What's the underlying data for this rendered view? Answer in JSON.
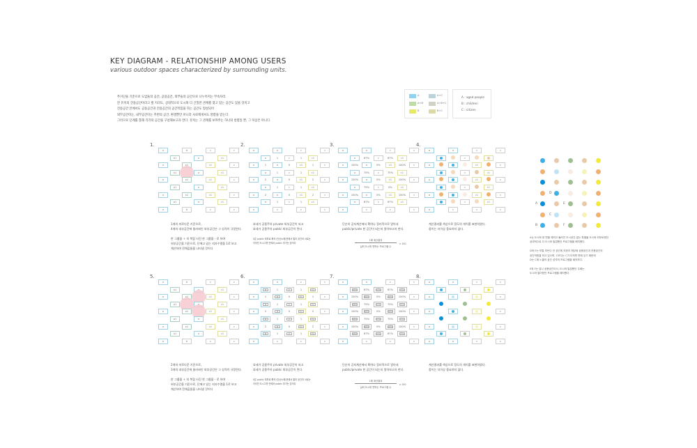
{
  "header": {
    "title": "KEY DIAGRAM - RELATIONSHIP AMONG USERS",
    "subtitle": "various outdoor spaces characterized by surrounding units."
  },
  "intro": "주거단을 기준으로 도입들의 공간, 공용공간, 외부들의 공간으로 나누어지는 부속자리.\n한 유지의 전용공간이라고 할 지라도, 상대적으로 도시와 더 긴밀한 관계를 맺고 있는 공간도 있을 것이고\n전용공간 안에서도 공용공간과 전용공간의 공간적힘을 하는 공간도 형성되어\n외부공간이는, 내부공간이는 주변의 공간, 환경뿐만 아니라 사로에게서도 영향을 받는다.\n그러므로 단계를 통해 각각의 공간을 구성해보고자 한다. 유저는 그 관계를 보여주는 하나의 방향일 뿐, 그 이상은 아니다.",
  "legend": {
    "swatches": [
      {
        "label": "A",
        "color": "#8fd3ee"
      },
      {
        "label": "A+B",
        "color": "#bfdca8"
      },
      {
        "label": "B",
        "color": "#e9e86e"
      },
      {
        "label": "A+C",
        "color": "#bcd3dc"
      },
      {
        "label": "A+B+C",
        "color": "#cfd3c6"
      },
      {
        "label": "B+C",
        "color": "#dcd9a6"
      }
    ],
    "users": [
      "A : aged people",
      "B : children",
      "C : citizen"
    ]
  },
  "colors": {
    "a": "#9fcfe0",
    "a1": "#a9cfc0",
    "b": "#cccccc",
    "c": "#cccccc",
    "c1": "#dede9a",
    "blue": "#3fb0e6",
    "bluestrong": "#0a8fd8",
    "bluelight": "#bfe3f3",
    "orange": "#f0b070",
    "orangelight": "#f6d9bb",
    "tan": "#e8c9a8",
    "green": "#9fbf90",
    "greenlight": "#cddcc4",
    "yellow": "#f1ea3a",
    "yellowlight": "#f7f2b8",
    "pale": "#f7ebe2",
    "pink": "#f6c9cf"
  },
  "panels": [
    {
      "number": "1.",
      "grid": [
        [
          "[a]",
          "",
          "[b]",
          "",
          "[c]",
          "",
          "[c]"
        ],
        [
          "",
          "[a1]",
          "",
          "[a]",
          "",
          "[c1]",
          ""
        ],
        [
          "[a]",
          "",
          "[a1]",
          "",
          "[c1]",
          "",
          "[c]"
        ],
        [
          "",
          "[a1]",
          "{pink}",
          "[a]",
          "",
          "[c1]",
          ""
        ],
        [
          "[a]",
          "",
          "[a1]",
          "",
          "[c1]",
          "",
          "[c]"
        ],
        [
          "",
          "[a1]",
          "",
          "[a]",
          "",
          "[c1]",
          ""
        ],
        [
          "[a]",
          "",
          "[a1]",
          "",
          "[c1]",
          "",
          "[c]"
        ],
        [
          "",
          "[a1]",
          "",
          "[a]",
          "",
          "[c1]",
          ""
        ],
        [
          "[a]",
          "",
          "[b]",
          "",
          "[c]",
          "",
          "[c]"
        ]
      ],
      "text": "1개의 미로다운 기준으로,\n4개의 내부공간에 둘러싸인 외부공간은 그 성격이 규정된다.\n\n한 그룹을 + 의 복잡 사진 한 그룹을 - 로 하여\n외부공간을 기준으로, 단에고 있는 지자수열을 1로 보고\n계산하여 전체값들을 나타낼 것이다"
    },
    {
      "number": "2.",
      "grid": [
        [
          "[a]",
          "",
          "[a]",
          "",
          "[c]",
          "",
          "[c]"
        ],
        [
          "",
          "[a]",
          "1",
          "[c]",
          "1",
          "[c1]",
          ""
        ],
        [
          "[a]",
          "1",
          "[a]",
          "0",
          "[c1]",
          "1",
          "[c]"
        ],
        [
          "",
          "[a]",
          "1",
          "[c]",
          "1",
          "[c1]",
          ""
        ],
        [
          "[a]",
          "2",
          "[a]",
          "0",
          "[c1]",
          "2",
          "[c]"
        ],
        [
          "",
          "[a]",
          "1",
          "[c]",
          "1",
          "[c1]",
          ""
        ],
        [
          "[a]",
          "2",
          "[a]",
          "0",
          "[c1]",
          "2",
          "[c]"
        ],
        [
          "",
          "[a]",
          "1",
          "[c]",
          "1",
          "[c1]",
          ""
        ],
        [
          "[a]",
          "",
          "[c]",
          "",
          "[c]",
          "",
          "[c]"
        ]
      ],
      "text": "호세가 공용주의 private 외부공간이 되고\n호세가 공용주의 public 외부공간이 된다.",
      "note": "0은 public 외부로 해석 (단순노에)전에서 멀리 공간과 서로는\n이어진 도시그를 안에서 public 추가는 장이다"
    },
    {
      "number": "3.",
      "grid": [
        [
          "[a]",
          "",
          "[a]",
          "",
          "[c]",
          "",
          "[c]"
        ],
        [
          "",
          "[a]",
          "67%",
          "[c]",
          "67%",
          "[c1]",
          ""
        ],
        [
          "[a]",
          "100%",
          "[a]",
          "0%",
          "[c1]",
          "100%",
          "[c]"
        ],
        [
          "",
          "[a]",
          "75%",
          "[c]",
          "75%",
          "[c1]",
          ""
        ],
        [
          "[a]",
          "100%",
          "[a]",
          "0%",
          "[c1]",
          "100%",
          "[c]"
        ],
        [
          "",
          "[a]",
          "75%",
          "[c]",
          "0%",
          "[c1]",
          ""
        ],
        [
          "[a]",
          "100%",
          "[a]",
          "0%",
          "[c1]",
          "100%",
          "[c]"
        ],
        [
          "",
          "[a]",
          "67%",
          "[c]",
          "67%",
          "[c1]",
          ""
        ],
        [
          "[a]",
          "",
          "[c]",
          "",
          "[c]",
          "",
          "[c]"
        ]
      ],
      "text": "단순의 공지계산에서 확여나 정리적으로 알아내\npublic/private 한 공간이 되는지 알아보고자 한다.",
      "formula_num": "1에 계산결과",
      "formula_den": "실외 도시와 면하는 프로그램 수",
      "formula_mult": "x 100"
    },
    {
      "number": "4.",
      "grid": [
        [
          "[a]",
          "",
          "[a]",
          "",
          "[c]",
          "",
          "[c]"
        ],
        [
          "",
          "[a:blue]",
          "(orangelight)",
          "[c]",
          "(orangelight)",
          "[c1:tan]",
          ""
        ],
        [
          "[a]",
          "(orange)",
          "[a:blue]",
          "(pale)",
          "[c1]",
          "(orange)",
          "[c]"
        ],
        [
          "",
          "[a:blue]",
          "(orangelight)",
          "[c]",
          "(tan)",
          "[c1]",
          ""
        ],
        [
          "[a]",
          "(orange)",
          "[a:blue]",
          "(pale)",
          "[c1]",
          "(orange)",
          "[c]"
        ],
        [
          "",
          "[a:blue]",
          "(orangelight)",
          "[c]",
          "(tan)",
          "[c1]",
          ""
        ],
        [
          "[a]",
          "(orange)",
          "[a:blue]",
          "(pale)",
          "[c1]",
          "(orange)",
          "[c]"
        ],
        [
          "",
          "[a:blue]",
          "(orangelight)",
          "[c]",
          "(orangelight)",
          "[c1]",
          ""
        ],
        [
          "[a]",
          "",
          "[c]",
          "",
          "[c]",
          "",
          "[c]"
        ]
      ],
      "text": "계산결과를 색상으로 정도의 개이를 표현하였다.\n중이는 더이상 중요하지 않다."
    },
    {
      "number": "5.",
      "grid": [
        [
          "[a]",
          "",
          "[b]",
          "",
          "[c]",
          "",
          "[c]"
        ],
        [
          "",
          "[a1]",
          "",
          "[a]",
          "",
          "[c1]",
          ""
        ],
        [
          "[a]",
          "",
          "[a1]",
          "{pink}",
          "[c1]",
          "",
          "[c]"
        ],
        [
          "",
          "[a1]",
          "{pink}",
          "[a]",
          "",
          "[c1]",
          ""
        ],
        [
          "[a]",
          "",
          "[a1]",
          "{pink}",
          "[c1]",
          "",
          "[c]"
        ],
        [
          "",
          "[a1]",
          "",
          "[a]",
          "",
          "[c1]",
          ""
        ],
        [
          "[a]",
          "",
          "[a1]",
          "",
          "[c1]",
          "",
          "[c]"
        ],
        [
          "",
          "[a1]",
          "",
          "[a]",
          "",
          "[c1]",
          ""
        ],
        [
          "[a]",
          "",
          "[b]",
          "",
          "[c]",
          "",
          "[c]"
        ]
      ],
      "text": "2개의 미로다운 기준으로,\n3개의 내부공간에 둘러싸인 외부공간은 그 성격이 규정된다.\n\n한 그룹을 + 의 복잡 사진 한 그룹을 - 로 하여\n외부공간을 기준으로, 단에고 있는 지자수열을 1로 보고\n계산하여 전체값들을 나타낼 것이다"
    },
    {
      "number": "6.",
      "grid": [
        [
          "[a]",
          "",
          "[a]",
          "",
          "[c]",
          "",
          "[c]"
        ],
        [
          "",
          "[=a]",
          "1",
          "[=c]",
          "1",
          "[=c1]",
          ""
        ],
        [
          "[a]",
          "1",
          "[=a]",
          "0",
          "[=c1]",
          "1",
          "[c]"
        ],
        [
          "",
          "[=a]",
          "1",
          "[=c]",
          "1",
          "[=c1]",
          ""
        ],
        [
          "[a]",
          "2",
          "[=a]",
          "0",
          "[=c1]",
          "2",
          "[c]"
        ],
        [
          "",
          "[=a]",
          "1",
          "[=c]",
          "1",
          "[=c1]",
          ""
        ],
        [
          "[a]",
          "2",
          "[=a]",
          "0",
          "[=c1]",
          "2",
          "[c]"
        ],
        [
          "",
          "[=a]",
          "1",
          "[=c]",
          "1",
          "[=c1]",
          ""
        ],
        [
          "[a]",
          "",
          "[c]",
          "",
          "[c]",
          "",
          "[c]"
        ]
      ],
      "text": "호세가 공용주의 private 외부공간이 되고\n호세가 공용주의 public 외부공간이 된다.",
      "note": "0은 public 외부로 해석 (단순노에)전에서 멀리 공간과 서로는\n이어진 도시그를 안에서 public 추가는 장이다"
    },
    {
      "number": "7.",
      "grid": [
        [
          "[a]",
          "",
          "[a]",
          "",
          "[c]",
          "",
          "[c]"
        ],
        [
          "",
          "[=28%]",
          "67%",
          "[=0%]",
          "67%",
          "[=5%]",
          ""
        ],
        [
          "[a]",
          "100%",
          "[=28%]",
          "0%",
          "[=28%]",
          "100%",
          "[c]"
        ],
        [
          "",
          "[=28%]",
          "75%",
          "[=0%]",
          "75%",
          "[=5%]",
          ""
        ],
        [
          "[a]",
          "100%",
          "[=28%]",
          "0%",
          "[=28%]",
          "100%",
          "[c]"
        ],
        [
          "",
          "[=28%]",
          "75%",
          "[=0%]",
          "75%",
          "[=5%]",
          ""
        ],
        [
          "[a]",
          "100%",
          "[=28%]",
          "0%",
          "[=28%]",
          "100%",
          "[c]"
        ],
        [
          "",
          "[=28%]",
          "67%",
          "[=0%]",
          "67%",
          "[=5%]",
          ""
        ],
        [
          "[a]",
          "",
          "[c]",
          "",
          "[c]",
          "",
          "[c]"
        ]
      ],
      "text": "단순의 공지계산에서 확여나 정리적으로 알아내\npublic/private 한 공간이 되는지 알아보고자 한다.",
      "formula_num": "1에 계산결과",
      "formula_den": "실외 도시와 면하는 프로그램 수",
      "formula_mult": "x 100"
    },
    {
      "number": "8.",
      "grid": [
        [
          "[a]",
          "",
          "[a]",
          "",
          "[c]",
          "",
          "[c]"
        ],
        [
          "",
          "[a:blue]",
          "",
          "[c:green]",
          "",
          "[c1:yellow]",
          ""
        ],
        [
          "[a]",
          "",
          "[a:bluelight]",
          "",
          "[c1:yellowlight]",
          "",
          "[c]"
        ],
        [
          "",
          "(bluestrong)",
          "",
          "(green)",
          "",
          "(yellow)",
          ""
        ],
        [
          "[a]",
          "",
          "[a:blue]",
          "",
          "[c1:yellowlight]",
          "",
          "[c]"
        ],
        [
          "",
          "(bluestrong)",
          "",
          "(green)",
          "",
          "(yellow)",
          ""
        ],
        [
          "[a]",
          "",
          "[a:bluelight]",
          "",
          "[c1:yellowlight]",
          "",
          "[c]"
        ],
        [
          "",
          "[a:blue]",
          "",
          "[c:green]",
          "",
          "[c1:yellow]",
          ""
        ],
        [
          "[a]",
          "",
          "[a]",
          "",
          "[c]",
          "",
          "[c]"
        ]
      ],
      "text": "계산결과를 색상으로 정도의 개이를 표현하였다.\n중이는 더이상 중요하지 않다."
    }
  ],
  "summary": {
    "dots": [
      [
        "blue",
        "tan",
        "green",
        "tan",
        "yellow"
      ],
      [
        "orange",
        "bluelight",
        "pale",
        "yellowlight",
        "orange"
      ],
      [
        "bluestrong",
        "tan",
        "green",
        "tan",
        "yellow"
      ],
      [
        "orange",
        "blue",
        "pale",
        "yellowlight",
        "orange"
      ],
      [
        "bluestrong",
        "tan",
        "green",
        "tan",
        "yellow"
      ],
      [
        "orange",
        "bluelight",
        "pale",
        "yellowlight",
        "orange"
      ],
      [
        "blue",
        "tan",
        "green",
        "tan",
        "yellow"
      ]
    ],
    "labels": [
      {
        "text": "D",
        "row": 3,
        "col": 1
      },
      {
        "text": "A",
        "row": 4,
        "col": 0
      },
      {
        "text": "E",
        "row": 4,
        "col": 2
      },
      {
        "text": "C",
        "row": 5,
        "col": 1
      },
      {
        "text": "B",
        "row": 6,
        "col": 0
      },
      {
        "text": "F",
        "row": 6,
        "col": 2
      }
    ],
    "text": "A는 도시와 한 면을 제외고 둘러진 도시공간 없는 특별을 도시와 외부로왔던\n상대적으로 더 도시와 밀접했던 프로그램을 배치했다.\n\nD와 E는 보통 모든다 안 공간에 의한지 해당에 공용공간과 전용공간의\n공간적힘을 하고 있으며, C보다는 C가 더하면 면에 있기 때문에\nD는 C에 노출의 공간 성격의 프로그램을 배치하다.\n\nE와 F는 앞나 공용공간이서, 도시와 밀접했던 주배는\n도시와 떨어졌던 프로그램을 배치했다."
  }
}
